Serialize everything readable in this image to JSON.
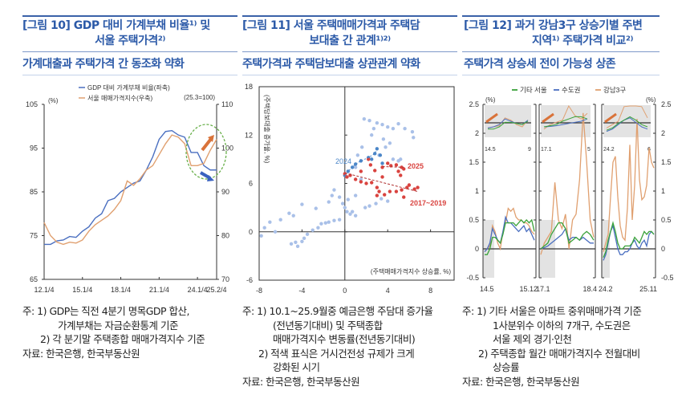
{
  "figures": [
    {
      "title_line1": "[그림 10] GDP 대비 가계부채 비율¹⁾ 및",
      "title_line2": "서울 주택가격²⁾",
      "subtitle": "가계대출과 주택가격 간 동조화 약화",
      "notes": [
        "주: 1) GDP는 직전 4분기 명목GDP 합산,",
        "가계부채는 자금순환통계 기준",
        "2) 각 분기말 주택종합 매매가격지수 기준",
        "자료: 한국은행, 한국부동산원"
      ]
    },
    {
      "title_line1": "[그림 11] 서울 주택매매가격과 주택담",
      "title_line2": "보대출 간 관계¹⁾²⁾",
      "subtitle": "주택가격과 주택담보대출 상관관계 약화",
      "notes": [
        "주: 1) 10.1~25.9월중 예금은행 주담대 증가율",
        "(전년동기대비) 및 주택종합",
        "매매가격지수 변동률(전년동기대비)",
        "2) 적색 표식은 거시건전성 규제가 크게",
        "강화된 시기",
        "자료: 한국은행, 한국부동산원"
      ]
    },
    {
      "title_line1": "[그림 12] 과거 강남3구 상승기별 주변",
      "title_line2": "지역¹⁾ 주택가격 비교²⁾",
      "subtitle": "주택가격 상승세 전이 가능성 상존",
      "notes": [
        "주: 1) 기타 서울은 아파트 중위매매가격 기준",
        "1사분위수 이하의 7개구, 수도권은",
        "서울 제외 경기·인천",
        "2) 주택종합 월간 매매가격지수 전월대비",
        "상승률",
        "자료: 한국은행, 한국부동산원"
      ]
    }
  ],
  "colors": {
    "title_blue": "#2c5aa8",
    "gdp_blue": "#4a6fc0",
    "price_orange": "#e0a070",
    "light_blue": "#a9c0e8",
    "dark_blue": "#4b86c8",
    "red": "#d9433f",
    "green": "#3aa23a",
    "circle_green": "#6ab04c"
  },
  "chart_data": [
    {
      "type": "line",
      "left_unit": "(%)",
      "right_unit": "(25.3=100)",
      "ylim_left": [
        65,
        105
      ],
      "ylim_right": [
        70,
        110
      ],
      "yticks_left": [
        "65",
        "75",
        "85",
        "95",
        "105"
      ],
      "yticks_right": [
        "70",
        "80",
        "90",
        "100",
        "110"
      ],
      "xticks": [
        "12.1/4",
        "15.1/4",
        "18.1/4",
        "21.1/4",
        "24.1/4",
        "25.2/4"
      ],
      "annotation": "green dashed circle with orange up-arrow and blue down-arrow",
      "x": [
        "12.1/4",
        "12.3/4",
        "13.1/4",
        "13.3/4",
        "14.1/4",
        "14.3/4",
        "15.1/4",
        "15.3/4",
        "16.1/4",
        "16.3/4",
        "17.1/4",
        "17.3/4",
        "18.1/4",
        "18.3/4",
        "19.1/4",
        "19.3/4",
        "20.1/4",
        "20.3/4",
        "21.1/4",
        "21.3/4",
        "22.1/4",
        "22.3/4",
        "23.1/4",
        "23.3/4",
        "24.1/4",
        "24.3/4",
        "25.1/4",
        "25.2/4"
      ],
      "series": [
        {
          "name": "GDP 대비 가계부채 비율(좌축)",
          "axis": "left",
          "values": [
            73,
            73,
            73.8,
            74,
            74.8,
            74.6,
            76,
            77,
            79,
            80,
            83,
            83.5,
            85,
            86,
            87,
            87.5,
            90,
            93,
            97,
            98.8,
            99,
            98,
            97.5,
            94,
            94,
            91,
            90,
            90
          ]
        },
        {
          "name": "서울 매매가격지수(우축)",
          "axis": "right",
          "values": [
            83,
            80,
            78.5,
            78,
            78.5,
            78.3,
            79,
            81,
            82.5,
            83.5,
            84.5,
            86,
            88,
            92.5,
            91.5,
            93,
            95,
            96,
            98.5,
            101,
            103,
            102.5,
            101,
            96,
            96,
            96.5,
            99.5,
            102
          ]
        }
      ]
    },
    {
      "type": "scatter",
      "xlim": [
        -8,
        10.2
      ],
      "ylim": [
        -6,
        18
      ],
      "xticks": [
        "-8",
        "-4",
        "0",
        "4",
        "8"
      ],
      "yticks": [
        "-6",
        "0",
        "6",
        "12",
        "18"
      ],
      "xlabel": "(주택매매가격지수 상승률, %)",
      "ylabel": "(주택담보대출 증가율, %)",
      "labels": {
        "y2024": "2024",
        "y2025": "2025",
        "y1719": "2017~2019"
      },
      "series": [
        {
          "group": "other",
          "points": [
            [
              -7.8,
              -0.5
            ],
            [
              -7.5,
              0.5
            ],
            [
              -7,
              1.2
            ],
            [
              -6.5,
              0
            ],
            [
              -6,
              1.5
            ],
            [
              -5.2,
              2.3
            ],
            [
              -4.8,
              2
            ],
            [
              -5,
              -1.5
            ],
            [
              -4.6,
              -1.3
            ],
            [
              -4.4,
              -1.8
            ],
            [
              -4,
              -1.2
            ],
            [
              -3.8,
              -0.8
            ],
            [
              -3.5,
              -0.3
            ],
            [
              -3,
              0.2
            ],
            [
              -2.5,
              0.5
            ],
            [
              -2.2,
              1
            ],
            [
              -1.8,
              1.1
            ],
            [
              -1.5,
              1.2
            ],
            [
              -1,
              1.4
            ],
            [
              -0.5,
              1.5
            ],
            [
              -4,
              3.4
            ],
            [
              -2.7,
              2.9
            ],
            [
              -1.5,
              3.7
            ],
            [
              -1.2,
              4.5
            ],
            [
              -1,
              5.2
            ],
            [
              -0.5,
              4.3
            ],
            [
              -0.2,
              3.5
            ],
            [
              0,
              3
            ],
            [
              0.2,
              2.5
            ],
            [
              0.5,
              2.2
            ],
            [
              0.3,
              4
            ],
            [
              1,
              4.5
            ],
            [
              1.5,
              6.5
            ],
            [
              1.2,
              9.5
            ],
            [
              1.6,
              10.5
            ],
            [
              1.8,
              14
            ],
            [
              2.3,
              13.8
            ],
            [
              2.5,
              12
            ],
            [
              2.7,
              12.8
            ],
            [
              3,
              13.5
            ],
            [
              3.5,
              13.3
            ],
            [
              4,
              13
            ],
            [
              4.5,
              12.8
            ],
            [
              5,
              13.4
            ],
            [
              5.6,
              12.8
            ],
            [
              6.3,
              12.4
            ],
            [
              6.4,
              11.7
            ],
            [
              3.8,
              10.5
            ],
            [
              4.2,
              11
            ],
            [
              4.5,
              9
            ],
            [
              5,
              8.8
            ],
            [
              5.2,
              9
            ],
            [
              3.4,
              4.1
            ],
            [
              4,
              3.8
            ],
            [
              2.3,
              3.2
            ],
            [
              1.9,
              3
            ],
            [
              1,
              2
            ],
            [
              0.7,
              2.5
            ],
            [
              2.9,
              3.5
            ],
            [
              3.2,
              9.5
            ],
            [
              3.6,
              11.5
            ],
            [
              1,
              8
            ]
          ]
        },
        {
          "group": "2024",
          "points": [
            [
              0,
              7
            ],
            [
              0.3,
              7.5
            ],
            [
              0.7,
              8
            ],
            [
              1,
              8.4
            ],
            [
              1.5,
              8.8
            ],
            [
              2.2,
              9.2
            ],
            [
              2.8,
              9.7
            ],
            [
              3,
              10.3
            ],
            [
              3.3,
              9.5
            ],
            [
              3.5,
              8.5
            ],
            [
              2.5,
              9
            ]
          ]
        },
        {
          "group": "2017~2019",
          "points": [
            [
              0,
              7.2
            ],
            [
              0.2,
              6.8
            ],
            [
              0.5,
              7
            ],
            [
              1,
              6.5
            ],
            [
              1.5,
              6.2
            ],
            [
              2,
              6
            ],
            [
              2.5,
              6.1
            ],
            [
              3,
              5.5
            ],
            [
              3.2,
              5
            ],
            [
              3,
              4.5
            ],
            [
              3.7,
              4.6
            ],
            [
              4.2,
              5
            ],
            [
              4.8,
              5
            ],
            [
              5.3,
              5.2
            ],
            [
              5.5,
              4.3
            ],
            [
              6,
              5.8
            ],
            [
              6.5,
              5.3
            ],
            [
              6.8,
              5.5
            ],
            [
              5.8,
              5.5
            ],
            [
              2.2,
              9
            ],
            [
              2.4,
              8.3
            ],
            [
              2.8,
              7.6
            ],
            [
              3.5,
              6.8
            ],
            [
              1.5,
              7.5
            ]
          ],
          "trend": [
            [
              0,
              7.3
            ],
            [
              6.8,
              5
            ]
          ]
        },
        {
          "group": "2025",
          "points": [
            [
              3.5,
              8
            ],
            [
              4,
              8.5
            ],
            [
              4.3,
              8.2
            ],
            [
              4.8,
              8.3
            ],
            [
              5.3,
              8
            ],
            [
              5.5,
              7.8
            ],
            [
              5,
              7.5
            ],
            [
              5.2,
              7
            ]
          ],
          "trend": [
            [
              3.5,
              8.1
            ],
            [
              5.5,
              8
            ]
          ]
        }
      ]
    },
    {
      "type": "line",
      "unit": "(%)",
      "ylim": [
        -0.5,
        2.5
      ],
      "yticks": [
        "-0.5",
        "0",
        "0.5",
        "1",
        "1.5",
        "2",
        "2.5"
      ],
      "legend": [
        "기타 서울",
        "수도권",
        "강남3구"
      ],
      "panels": [
        {
          "start": "14.5",
          "end": "15.12",
          "inset_labels": [
            "14.5",
            "9"
          ],
          "series": {
            "기타 서울": [
              -0.1,
              -0.1,
              0,
              0.2,
              0.2,
              0.15,
              0.1,
              0.25,
              0.45,
              0.45,
              0.45,
              0.45,
              0.4,
              0.45,
              0.5,
              0.45,
              0.5,
              0.45,
              0.5,
              0.3
            ],
            "수도권": [
              -0.05,
              0,
              0.1,
              0.35,
              0.25,
              0.15,
              0.1,
              0.3,
              0.55,
              0.45,
              0.45,
              0.4,
              0.35,
              0.3,
              0.35,
              0.4,
              0.3,
              0.35,
              0.25,
              0.15
            ],
            "강남3구": [
              -0.05,
              0,
              0.05,
              0.4,
              0.3,
              0.1,
              0,
              0.3,
              0.45,
              0.7,
              0.65,
              0.7,
              0.55,
              0.5,
              0.5,
              0.45,
              0.45,
              0.4,
              0.3,
              0.25
            ]
          }
        },
        {
          "start": "17.1",
          "end": "18.4",
          "inset_labels": [
            "17.1",
            "5"
          ],
          "series": {
            "기타 서울": [
              0,
              0.05,
              0.1,
              0.25,
              0.35,
              0.45,
              0.45,
              0.35,
              0.1,
              0.15,
              0.2,
              0.15,
              0.25,
              0.3,
              0.25,
              0.15
            ],
            "수도권": [
              0,
              0.02,
              0.05,
              0.1,
              0.15,
              0.2,
              0.25,
              0.35,
              0.15,
              0.2,
              0.2,
              0.15,
              0.2,
              0.15,
              0.1,
              0.1
            ],
            "강남3구": [
              -0.1,
              0.1,
              0.2,
              0.3,
              1.15,
              0.5,
              0.35,
              0.6,
              0,
              0.5,
              0.6,
              1.2,
              2.35,
              1.5,
              0.5,
              0.2
            ]
          }
        },
        {
          "start": "24.2",
          "end": "25.11",
          "inset_labels": [
            "24.2",
            "6"
          ],
          "series": {
            "기타 서울": [
              -0.15,
              -0.05,
              0.15,
              0.3,
              0.45,
              0.3,
              0.1,
              0,
              0,
              0.05,
              0.05,
              0.05,
              0.1,
              0.2,
              0.15,
              0.1,
              0.2,
              0.3,
              0.25,
              0.3,
              0.3,
              0.25
            ],
            "수도권": [
              -0.2,
              -0.1,
              0.1,
              0.3,
              0.4,
              0.2,
              0,
              -0.1,
              -0.1,
              -0.05,
              -0.05,
              0,
              0.1,
              0.15,
              0.05,
              0,
              0.1,
              0.15,
              0.05,
              0.25,
              0.3,
              0.25
            ],
            "강남3구": [
              -0.05,
              0.1,
              0.25,
              0.9,
              1.5,
              1.6,
              0.9,
              0.4,
              0.2,
              0.15,
              0.7,
              1.8,
              0.5,
              1.1,
              2.25,
              1.2,
              0.85,
              0.9,
              1.1,
              1.75,
              1.5,
              1.4
            ]
          }
        }
      ]
    }
  ]
}
